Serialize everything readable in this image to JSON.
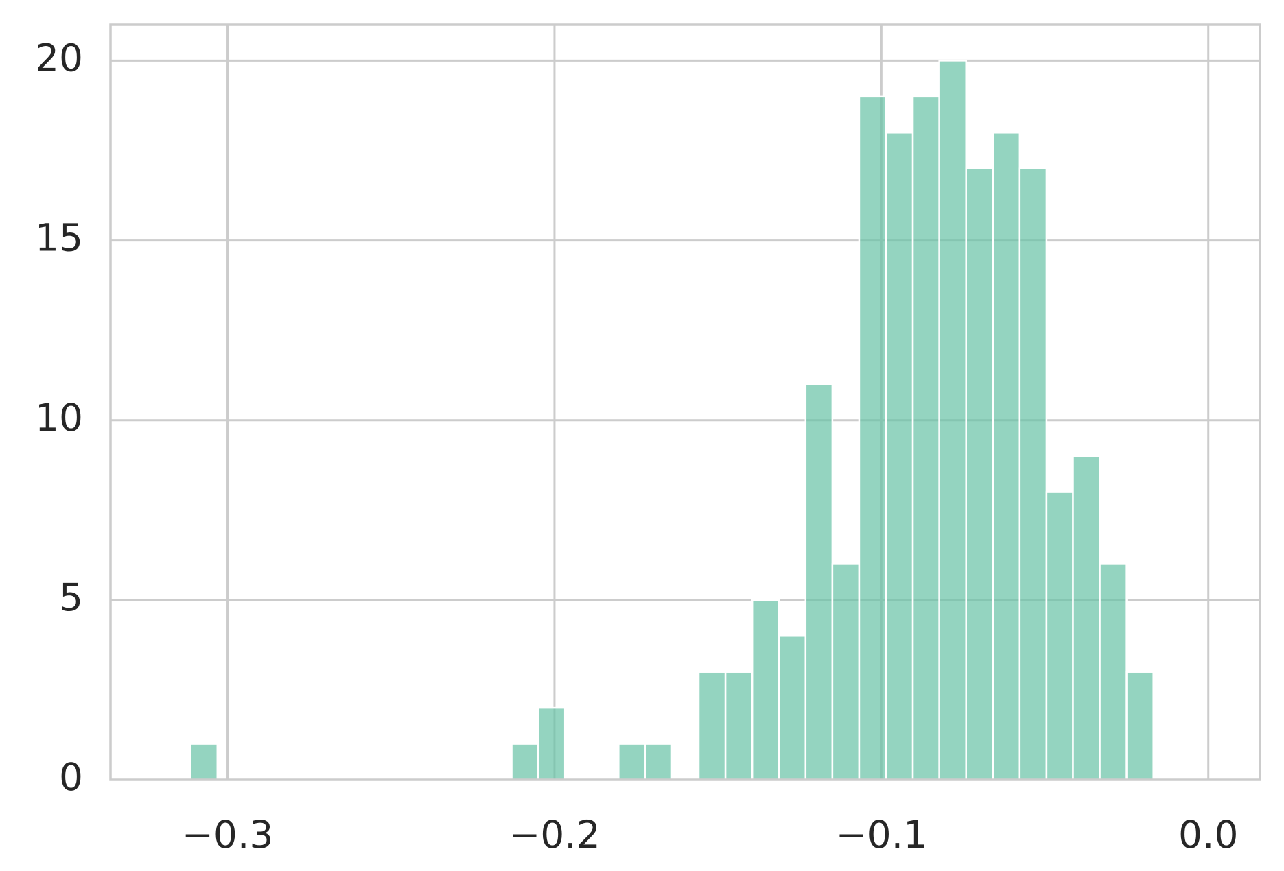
{
  "chart_data": {
    "type": "histogram",
    "bins": [
      -0.3113,
      -0.3031,
      -0.2949,
      -0.2868,
      -0.2786,
      -0.2704,
      -0.2622,
      -0.254,
      -0.2459,
      -0.2377,
      -0.2295,
      -0.2213,
      -0.2131,
      -0.205,
      -0.1968,
      -0.1886,
      -0.1804,
      -0.1722,
      -0.1641,
      -0.1559,
      -0.1477,
      -0.1395,
      -0.1313,
      -0.1232,
      -0.115,
      -0.1068,
      -0.0986,
      -0.0904,
      -0.0823,
      -0.0741,
      -0.0659,
      -0.0577,
      -0.0495,
      -0.0414,
      -0.0332,
      -0.025,
      -0.0168
    ],
    "values": [
      1,
      0,
      0,
      0,
      0,
      0,
      0,
      0,
      0,
      0,
      0,
      0,
      1,
      2,
      0,
      0,
      1,
      1,
      0,
      3,
      3,
      5,
      4,
      11,
      6,
      19,
      18,
      19,
      20,
      17,
      18,
      17,
      8,
      9,
      6,
      3
    ],
    "color": "#66c2a5",
    "xlim": [
      -0.3358,
      0.0158
    ],
    "xticks": [
      {
        "value": -0.3,
        "label": "−0.3"
      },
      {
        "value": -0.2,
        "label": "−0.2"
      },
      {
        "value": -0.1,
        "label": "−0.1"
      },
      {
        "value": 0,
        "label": "0.0"
      }
    ],
    "ylim": [
      0,
      21
    ],
    "yticks": [
      0,
      5,
      10,
      15,
      20
    ],
    "grid": true
  }
}
